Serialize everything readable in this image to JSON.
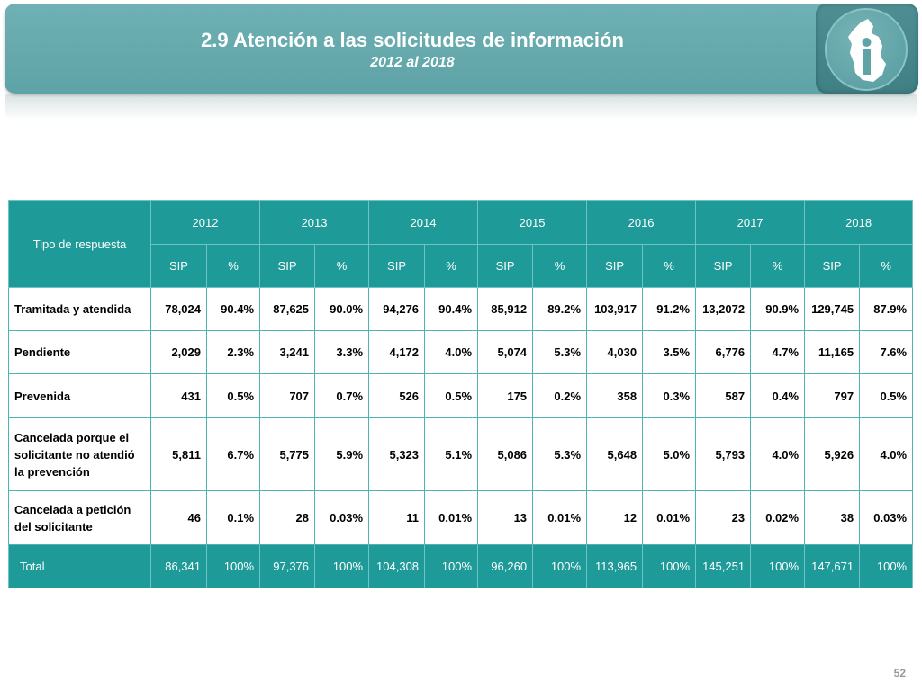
{
  "header": {
    "title": "2.9 Atención a las solicitudes de información",
    "subtitle": "2012 al 2018",
    "logo_icon": "cdmx-info-logo-icon"
  },
  "table": {
    "row_header": "Tipo de respuesta",
    "years": [
      "2012",
      "2013",
      "2014",
      "2015",
      "2016",
      "2017",
      "2018"
    ],
    "sub_headers": [
      "SIP",
      "%"
    ],
    "rows": [
      {
        "label": "Tramitada y atendida",
        "cells": [
          "78,024",
          "90.4%",
          "87,625",
          "90.0%",
          "94,276",
          "90.4%",
          "85,912",
          "89.2%",
          "103,917",
          "91.2%",
          "13,2072",
          "90.9%",
          "129,745",
          "87.9%"
        ]
      },
      {
        "label": "Pendiente",
        "cells": [
          "2,029",
          "2.3%",
          "3,241",
          "3.3%",
          "4,172",
          "4.0%",
          "5,074",
          "5.3%",
          "4,030",
          "3.5%",
          "6,776",
          "4.7%",
          "11,165",
          "7.6%"
        ]
      },
      {
        "label": "Prevenida",
        "cells": [
          "431",
          "0.5%",
          "707",
          "0.7%",
          "526",
          "0.5%",
          "175",
          "0.2%",
          "358",
          "0.3%",
          "587",
          "0.4%",
          "797",
          "0.5%"
        ]
      },
      {
        "label": "Cancelada porque el solicitante no atendió la prevención",
        "cells": [
          "5,811",
          "6.7%",
          "5,775",
          "5.9%",
          "5,323",
          "5.1%",
          "5,086",
          "5.3%",
          "5,648",
          "5.0%",
          "5,793",
          "4.0%",
          "5,926",
          "4.0%"
        ]
      },
      {
        "label": "Cancelada a petición del solicitante",
        "cells": [
          "46",
          "0.1%",
          "28",
          "0.03%",
          "11",
          "0.01%",
          "13",
          "0.01%",
          "12",
          "0.01%",
          "23",
          "0.02%",
          "38",
          "0.03%"
        ]
      }
    ],
    "total": {
      "label": "Total",
      "cells": [
        "86,341",
        "100%",
        "97,376",
        "100%",
        "104,308",
        "100%",
        "96,260",
        "100%",
        "113,965",
        "100%",
        "145,251",
        "100%",
        "147,671",
        "100%"
      ]
    }
  },
  "page_number": "52",
  "colors": {
    "banner": "#65aaad",
    "table_header": "#1e9a98",
    "table_border": "#4fb3b2"
  }
}
